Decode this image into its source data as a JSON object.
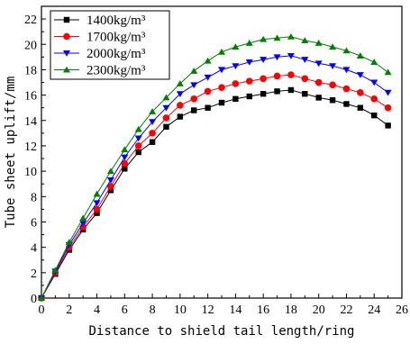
{
  "chart_data": {
    "type": "line",
    "xlabel": "Distance to shield tail length/ring",
    "ylabel": "Tube sheet uplift/mm",
    "xlim": [
      0,
      26
    ],
    "ylim": [
      0,
      23
    ],
    "xticks": [
      "0",
      "2",
      "4",
      "6",
      "8",
      "10",
      "12",
      "14",
      "16",
      "18",
      "20",
      "22",
      "24",
      "26"
    ],
    "yticks": [
      "0",
      "2",
      "4",
      "6",
      "8",
      "10",
      "12",
      "14",
      "16",
      "18",
      "20",
      "22"
    ],
    "legend_position": "top-left",
    "grid": false,
    "x": [
      0,
      1,
      2,
      3,
      4,
      5,
      6,
      7,
      8,
      9,
      10,
      11,
      12,
      13,
      14,
      15,
      16,
      17,
      18,
      19,
      20,
      21,
      22,
      23,
      24,
      25
    ],
    "series": [
      {
        "name": "1400kg/m³",
        "color": "#000000",
        "marker": "square",
        "values": [
          0,
          1.9,
          3.8,
          5.4,
          6.7,
          8.5,
          10.2,
          11.5,
          12.3,
          13.5,
          14.3,
          14.8,
          15.0,
          15.4,
          15.7,
          15.9,
          16.1,
          16.3,
          16.4,
          16.1,
          15.8,
          15.6,
          15.3,
          15.0,
          14.4,
          13.6
        ]
      },
      {
        "name": "1700kg/m³",
        "color": "#ff0000",
        "marker": "circle",
        "values": [
          0,
          2.0,
          4.0,
          5.6,
          7.0,
          8.8,
          10.6,
          12.0,
          13.0,
          14.2,
          15.2,
          15.7,
          16.3,
          16.6,
          16.9,
          17.1,
          17.3,
          17.5,
          17.6,
          17.3,
          17.0,
          16.8,
          16.5,
          16.2,
          15.7,
          15.0
        ]
      },
      {
        "name": "2000kg/m³",
        "color": "#0000ff",
        "marker": "triangle-down",
        "values": [
          0,
          2.1,
          4.2,
          5.9,
          7.5,
          9.3,
          11.1,
          12.6,
          13.9,
          15.0,
          16.1,
          16.8,
          17.4,
          18.0,
          18.3,
          18.6,
          18.8,
          19.0,
          19.1,
          18.8,
          18.5,
          18.3,
          18.0,
          17.6,
          17.0,
          16.2
        ]
      },
      {
        "name": "2300kg/m³",
        "color": "#008000",
        "marker": "triangle-up",
        "values": [
          0,
          2.2,
          4.4,
          6.3,
          8.2,
          10.0,
          11.7,
          13.3,
          14.7,
          15.8,
          16.9,
          17.9,
          18.7,
          19.4,
          19.8,
          20.1,
          20.4,
          20.5,
          20.6,
          20.3,
          20.1,
          19.8,
          19.5,
          19.1,
          18.6,
          17.8
        ]
      }
    ]
  }
}
